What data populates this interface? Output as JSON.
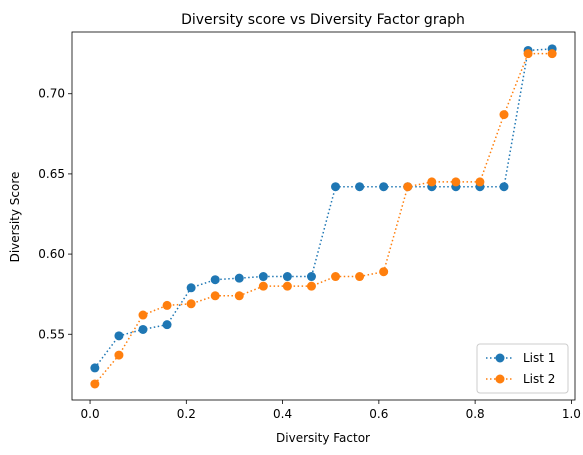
{
  "chart_data": {
    "type": "line",
    "title": "Diversity score vs Diversity Factor graph",
    "xlabel": "Diversity Factor",
    "ylabel": "Diversity Score",
    "xlim": [
      -0.0375,
      1.0075
    ],
    "ylim": [
      0.509,
      0.7385
    ],
    "xticks": [
      0.0,
      0.2,
      0.4,
      0.6,
      0.8,
      1.0
    ],
    "xtick_labels": [
      "0.0",
      "0.2",
      "0.4",
      "0.6",
      "0.8",
      "1.0"
    ],
    "yticks": [
      0.55,
      0.6,
      0.65,
      0.7
    ],
    "ytick_labels": [
      "0.55",
      "0.60",
      "0.65",
      "0.70"
    ],
    "grid": false,
    "legend_position": "lower right",
    "x": [
      0.01,
      0.06,
      0.11,
      0.16,
      0.21,
      0.26,
      0.31,
      0.36,
      0.41,
      0.46,
      0.51,
      0.56,
      0.61,
      0.66,
      0.71,
      0.76,
      0.81,
      0.86,
      0.91,
      0.96
    ],
    "series": [
      {
        "name": "List 1",
        "color": "#1f77b4",
        "values": [
          0.529,
          0.549,
          0.553,
          0.556,
          0.579,
          0.584,
          0.585,
          0.586,
          0.586,
          0.586,
          0.642,
          0.642,
          0.642,
          0.642,
          0.642,
          0.642,
          0.642,
          0.642,
          0.727,
          0.728
        ]
      },
      {
        "name": "List 2",
        "color": "#ff7f0e",
        "values": [
          0.519,
          0.537,
          0.562,
          0.568,
          0.569,
          0.574,
          0.574,
          0.58,
          0.58,
          0.58,
          0.586,
          0.586,
          0.589,
          0.642,
          0.645,
          0.645,
          0.645,
          0.687,
          0.725,
          0.725
        ]
      }
    ]
  }
}
